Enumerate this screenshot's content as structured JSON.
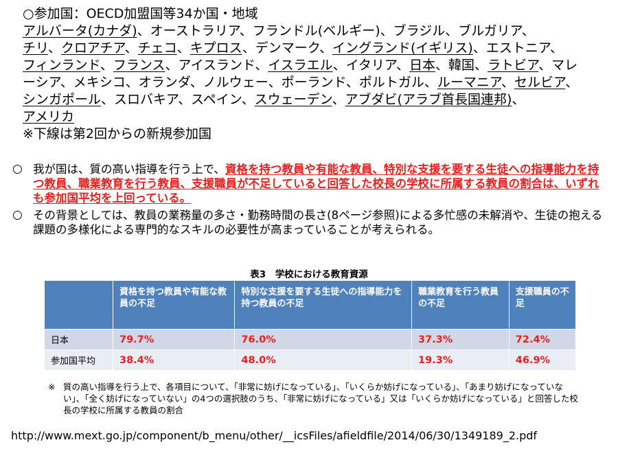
{
  "participants": {
    "heading": "○参加国：OECD加盟国等34か国・地域",
    "lines": [
      [
        {
          "t": "アルバータ(カナダ)",
          "u": true
        },
        {
          "t": "、オーストラリア、フランドル(ベルギー)、ブラジル、ブルガリア、",
          "u": false
        }
      ],
      [
        {
          "t": "チリ",
          "u": true
        },
        {
          "t": "、",
          "u": false
        },
        {
          "t": "クロアチア",
          "u": true
        },
        {
          "t": "、",
          "u": false
        },
        {
          "t": "チェコ",
          "u": true
        },
        {
          "t": "、",
          "u": false
        },
        {
          "t": "キプロス",
          "u": true
        },
        {
          "t": "、デンマーク、",
          "u": false
        },
        {
          "t": "イングランド(イギリス)",
          "u": true
        },
        {
          "t": "、エストニア、",
          "u": false
        }
      ],
      [
        {
          "t": "フィンランド",
          "u": true
        },
        {
          "t": "、",
          "u": false
        },
        {
          "t": "フランス",
          "u": true
        },
        {
          "t": "、アイスランド、",
          "u": false
        },
        {
          "t": "イスラエル",
          "u": true
        },
        {
          "t": "、イタリア、",
          "u": false
        },
        {
          "t": "日本",
          "u": true
        },
        {
          "t": "、韓国、",
          "u": false
        },
        {
          "t": "ラトビア",
          "u": true
        },
        {
          "t": "、マレ",
          "u": false
        }
      ],
      [
        {
          "t": "ーシア、メキシコ、オランダ、ノルウェー、ポーランド、ポルトガル、",
          "u": false
        },
        {
          "t": "ルーマニア",
          "u": true
        },
        {
          "t": "、",
          "u": false
        },
        {
          "t": "セルビア",
          "u": true
        },
        {
          "t": "、",
          "u": false
        }
      ],
      [
        {
          "t": "シンガポール",
          "u": true
        },
        {
          "t": "、スロバキア、スペイン、",
          "u": false
        },
        {
          "t": "スウェーデン",
          "u": true
        },
        {
          "t": "、",
          "u": false
        },
        {
          "t": "アブダビ(アラブ首長国連邦)",
          "u": true
        },
        {
          "t": "、",
          "u": false
        }
      ],
      [
        {
          "t": "アメリカ",
          "u": true
        }
      ]
    ],
    "footnote": "※下線は第2回からの新規参加国"
  },
  "bullets": {
    "mark": "○",
    "b1_intro": "我が国は、質の高い指導を行う上で、",
    "b1_red": "資格を持つ教員や有能な教員、特別な支援を要する生徒への指導能力を持つ教員、職業教育を行う教員、支援職員が不足していると回答した校長の学校に所属する教員の割合は、いずれも参加国平均を上回っている。",
    "b2": "その背景としては、教員の業務量の多さ・勤務時間の長さ(8ページ参照)による多忙感の未解消や、生徒の抱える課題の多様化による専門的なスキルの必要性が高まっていることが考えられる。"
  },
  "table": {
    "title": "表3　学校における教育資源",
    "headers": [
      "",
      "資格を持つ教員や有能な教員の不足",
      "特別な支援を要する生徒への指導能力を持つ教員の不足",
      "職業教育を行う教員の不足",
      "支援職員の不足"
    ],
    "rows": [
      {
        "label": "日本",
        "values": [
          "79.7%",
          "76.0%",
          "37.3%",
          "72.4%"
        ]
      },
      {
        "label": "参加国平均",
        "values": [
          "38.4%",
          "48.0%",
          "19.3%",
          "46.9%"
        ]
      }
    ]
  },
  "note": {
    "mark": "※",
    "text": "質の高い指導を行う上で、各項目について、「非常に妨げになっている」、「いくらか妨げになっている」、「あまり妨げになっていない」、「全く妨げになっていない」の4つの選択肢のうち、「非常に妨げになっている」又は「いくらか妨げになっている」と回答した校長の学校に所属する教員の割合"
  },
  "source_url": "http://www.mext.go.jp/component/b_menu/other/__icsFiles/afieldfile/2014/06/30/1349189_2.pdf"
}
